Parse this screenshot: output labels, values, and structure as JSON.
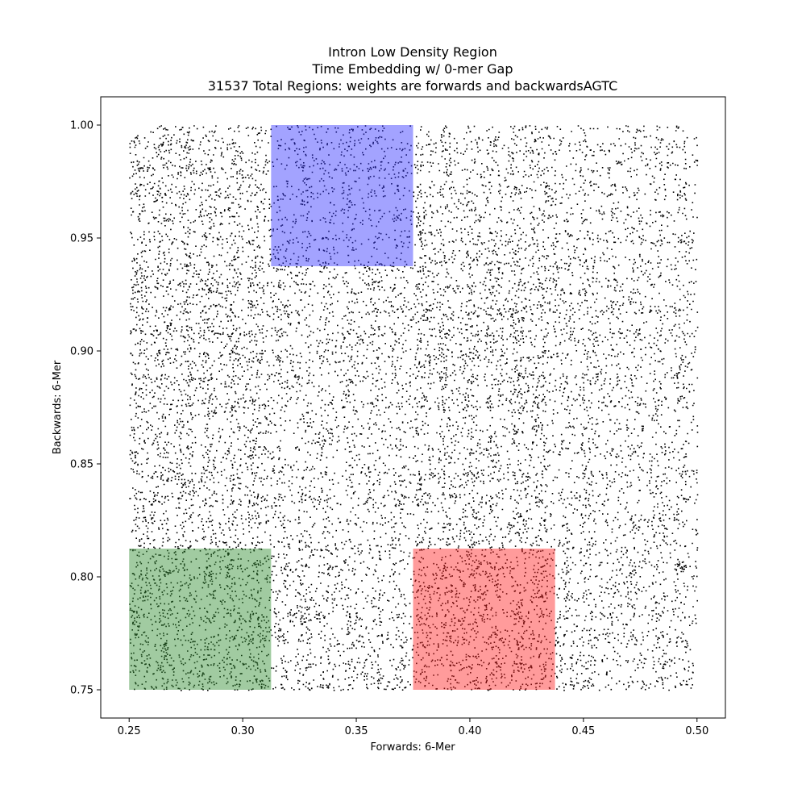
{
  "chart_data": {
    "type": "scatter",
    "title_lines": [
      "Intron Low Density Region",
      "Time Embedding w/ 0-mer Gap",
      "31537 Total Regions: weights are forwards and backwardsAGTC"
    ],
    "xlabel": "Forwards: 6-Mer",
    "ylabel": "Backwards: 6-Mer",
    "xlim": [
      0.2375,
      0.5125
    ],
    "ylim": [
      0.7375,
      1.0125
    ],
    "xticks": [
      0.25,
      0.3,
      0.35,
      0.4,
      0.45,
      0.5
    ],
    "xtick_labels": [
      "0.25",
      "0.30",
      "0.35",
      "0.40",
      "0.45",
      "0.50"
    ],
    "yticks": [
      0.75,
      0.8,
      0.85,
      0.9,
      0.95,
      1.0
    ],
    "ytick_labels": [
      "0.75",
      "0.80",
      "0.85",
      "0.90",
      "0.95",
      "1.00"
    ],
    "point_count": 31537,
    "point_x_range": [
      0.25,
      0.5
    ],
    "point_y_range": [
      0.75,
      1.0
    ],
    "point_color": "#000000",
    "grid": false,
    "highlight_regions": [
      {
        "x": [
          0.25,
          0.3125
        ],
        "y": [
          0.75,
          0.8125
        ],
        "color": "#2e8b2e",
        "opacity": 0.45
      },
      {
        "x": [
          0.3125,
          0.375
        ],
        "y": [
          0.9375,
          1.0
        ],
        "color": "#3333ff",
        "opacity": 0.45
      },
      {
        "x": [
          0.375,
          0.4375
        ],
        "y": [
          0.75,
          0.8125
        ],
        "color": "#ff2222",
        "opacity": 0.45
      }
    ]
  }
}
